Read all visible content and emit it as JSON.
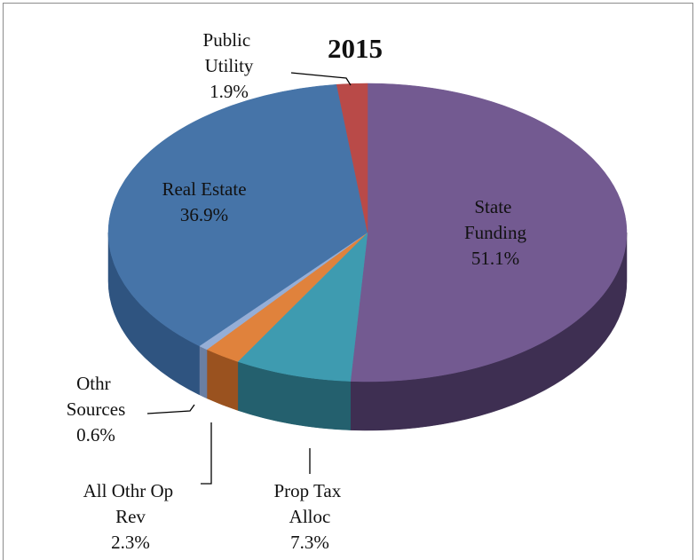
{
  "chart_data": {
    "type": "pie",
    "title": "2015",
    "categories": [
      "State Funding",
      "Prop Tax Alloc",
      "All Othr Op Rev",
      "Othr Sources",
      "Real Estate",
      "Public Utility"
    ],
    "values": [
      51.1,
      7.3,
      2.3,
      0.6,
      36.9,
      1.9
    ],
    "value_labels": [
      "51.1%",
      "7.3%",
      "2.3%",
      "0.6%",
      "36.9%",
      "1.9%"
    ],
    "colors": [
      "#735a91",
      "#3e9bb0",
      "#e0823c",
      "#95aed6",
      "#4674a8",
      "#b94a48"
    ],
    "side_colors": [
      "#3e2f52",
      "#24606e",
      "#9a521f",
      "#6a7fa3",
      "#2f5480",
      "#7c2b2a"
    ]
  }
}
